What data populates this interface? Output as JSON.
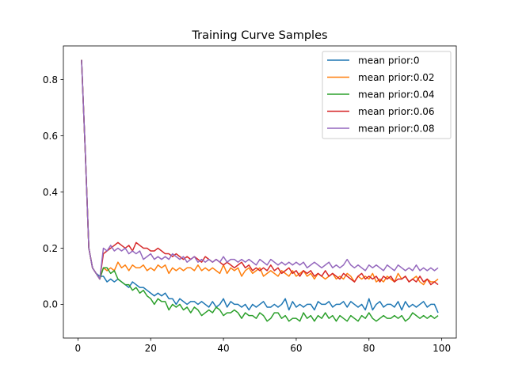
{
  "chart_data": {
    "type": "line",
    "title": "Training Curve Samples",
    "xlabel": "",
    "ylabel": "",
    "xlim": [
      -4,
      104
    ],
    "ylim": [
      -0.12,
      0.92
    ],
    "xticks": [
      0,
      20,
      40,
      60,
      80,
      100
    ],
    "yticks": [
      0.0,
      0.2,
      0.4,
      0.6,
      0.8
    ],
    "grid": false,
    "legend_position": "top-right",
    "x": [
      1,
      2,
      3,
      4,
      5,
      6,
      7,
      8,
      9,
      10,
      11,
      12,
      13,
      14,
      15,
      16,
      17,
      18,
      19,
      20,
      21,
      22,
      23,
      24,
      25,
      26,
      27,
      28,
      29,
      30,
      31,
      32,
      33,
      34,
      35,
      36,
      37,
      38,
      39,
      40,
      41,
      42,
      43,
      44,
      45,
      46,
      47,
      48,
      49,
      50,
      51,
      52,
      53,
      54,
      55,
      56,
      57,
      58,
      59,
      60,
      61,
      62,
      63,
      64,
      65,
      66,
      67,
      68,
      69,
      70,
      71,
      72,
      73,
      74,
      75,
      76,
      77,
      78,
      79,
      80,
      81,
      82,
      83,
      84,
      85,
      86,
      87,
      88,
      89,
      90,
      91,
      92,
      93,
      94,
      95,
      96,
      97,
      98,
      99
    ],
    "series": [
      {
        "name": "mean prior:0",
        "color": "#1f77b4",
        "values": [
          0.87,
          0.55,
          0.2,
          0.13,
          0.11,
          0.1,
          0.1,
          0.08,
          0.09,
          0.08,
          0.09,
          0.08,
          0.07,
          0.06,
          0.08,
          0.07,
          0.06,
          0.06,
          0.05,
          0.04,
          0.03,
          0.04,
          0.03,
          0.04,
          0.02,
          0.02,
          0.0,
          0.02,
          0.01,
          0.0,
          0.01,
          0.01,
          0.0,
          0.01,
          0.0,
          -0.01,
          0.01,
          -0.01,
          0.0,
          0.02,
          -0.01,
          0.01,
          0.0,
          0.0,
          -0.01,
          0.0,
          -0.02,
          0.0,
          -0.01,
          0.0,
          0.01,
          -0.01,
          -0.01,
          0.0,
          -0.01,
          0.0,
          0.02,
          -0.02,
          0.01,
          -0.01,
          0.0,
          -0.01,
          0.0,
          0.0,
          -0.02,
          0.01,
          0.0,
          0.0,
          0.01,
          -0.01,
          0.0,
          0.0,
          0.01,
          -0.01,
          0.01,
          0.0,
          -0.01,
          0.0,
          -0.02,
          0.02,
          -0.02,
          0.0,
          0.01,
          -0.01,
          0.0,
          0.0,
          -0.01,
          0.01,
          -0.02,
          0.01,
          -0.01,
          0.0,
          -0.01,
          0.0,
          0.01,
          -0.01,
          0.0,
          0.0,
          -0.03
        ]
      },
      {
        "name": "mean prior:0.02",
        "color": "#ff7f0e",
        "values": [
          0.87,
          0.55,
          0.2,
          0.13,
          0.11,
          0.09,
          0.13,
          0.12,
          0.13,
          0.12,
          0.15,
          0.13,
          0.14,
          0.12,
          0.14,
          0.13,
          0.13,
          0.14,
          0.12,
          0.13,
          0.12,
          0.14,
          0.13,
          0.14,
          0.11,
          0.13,
          0.12,
          0.13,
          0.12,
          0.13,
          0.13,
          0.12,
          0.14,
          0.12,
          0.13,
          0.12,
          0.13,
          0.12,
          0.11,
          0.14,
          0.11,
          0.13,
          0.12,
          0.13,
          0.1,
          0.12,
          0.13,
          0.11,
          0.12,
          0.13,
          0.1,
          0.11,
          0.12,
          0.11,
          0.1,
          0.12,
          0.11,
          0.1,
          0.12,
          0.1,
          0.11,
          0.12,
          0.1,
          0.11,
          0.09,
          0.11,
          0.1,
          0.09,
          0.1,
          0.11,
          0.09,
          0.1,
          0.09,
          0.11,
          0.1,
          0.08,
          0.1,
          0.09,
          0.1,
          0.09,
          0.11,
          0.08,
          0.09,
          0.08,
          0.1,
          0.09,
          0.08,
          0.11,
          0.09,
          0.1,
          0.08,
          0.09,
          0.1,
          0.08,
          0.07,
          0.09,
          0.08,
          0.08,
          0.09
        ]
      },
      {
        "name": "mean prior:0.04",
        "color": "#2ca02c",
        "values": [
          0.87,
          0.55,
          0.2,
          0.13,
          0.11,
          0.09,
          0.13,
          0.13,
          0.11,
          0.12,
          0.09,
          0.08,
          0.07,
          0.07,
          0.05,
          0.06,
          0.04,
          0.05,
          0.03,
          0.02,
          0.0,
          0.02,
          0.01,
          0.01,
          -0.02,
          0.0,
          -0.01,
          0.0,
          -0.02,
          -0.01,
          -0.03,
          -0.01,
          -0.02,
          -0.04,
          -0.03,
          -0.02,
          -0.03,
          -0.01,
          -0.02,
          -0.04,
          -0.03,
          -0.03,
          -0.02,
          -0.03,
          -0.05,
          -0.03,
          -0.04,
          -0.04,
          -0.05,
          -0.03,
          -0.04,
          -0.06,
          -0.05,
          -0.03,
          -0.03,
          -0.05,
          -0.04,
          -0.06,
          -0.05,
          -0.05,
          -0.06,
          -0.03,
          -0.05,
          -0.04,
          -0.06,
          -0.04,
          -0.05,
          -0.03,
          -0.05,
          -0.04,
          -0.06,
          -0.04,
          -0.05,
          -0.06,
          -0.04,
          -0.05,
          -0.06,
          -0.04,
          -0.05,
          -0.03,
          -0.05,
          -0.06,
          -0.05,
          -0.04,
          -0.05,
          -0.05,
          -0.04,
          -0.05,
          -0.04,
          -0.06,
          -0.05,
          -0.03,
          -0.04,
          -0.05,
          -0.04,
          -0.05,
          -0.04,
          -0.05,
          -0.04
        ]
      },
      {
        "name": "mean prior:0.06",
        "color": "#d62728",
        "values": [
          0.87,
          0.55,
          0.2,
          0.13,
          0.11,
          0.09,
          0.18,
          0.19,
          0.2,
          0.21,
          0.22,
          0.21,
          0.2,
          0.21,
          0.19,
          0.22,
          0.21,
          0.2,
          0.2,
          0.19,
          0.19,
          0.2,
          0.19,
          0.18,
          0.18,
          0.17,
          0.18,
          0.17,
          0.16,
          0.17,
          0.16,
          0.17,
          0.16,
          0.15,
          0.17,
          0.16,
          0.15,
          0.16,
          0.15,
          0.14,
          0.15,
          0.14,
          0.13,
          0.14,
          0.15,
          0.13,
          0.14,
          0.12,
          0.13,
          0.12,
          0.13,
          0.12,
          0.14,
          0.12,
          0.13,
          0.11,
          0.12,
          0.13,
          0.11,
          0.12,
          0.1,
          0.12,
          0.11,
          0.12,
          0.1,
          0.11,
          0.1,
          0.12,
          0.1,
          0.11,
          0.1,
          0.09,
          0.11,
          0.1,
          0.09,
          0.08,
          0.1,
          0.11,
          0.09,
          0.1,
          0.09,
          0.1,
          0.08,
          0.1,
          0.09,
          0.1,
          0.08,
          0.09,
          0.09,
          0.1,
          0.08,
          0.09,
          0.08,
          0.1,
          0.08,
          0.09,
          0.07,
          0.08,
          0.07
        ]
      },
      {
        "name": "mean prior:0.08",
        "color": "#9467bd",
        "values": [
          0.87,
          0.55,
          0.2,
          0.13,
          0.11,
          0.09,
          0.2,
          0.19,
          0.21,
          0.19,
          0.2,
          0.19,
          0.2,
          0.18,
          0.19,
          0.18,
          0.19,
          0.16,
          0.17,
          0.18,
          0.16,
          0.17,
          0.16,
          0.17,
          0.16,
          0.18,
          0.17,
          0.16,
          0.17,
          0.15,
          0.16,
          0.17,
          0.15,
          0.16,
          0.15,
          0.16,
          0.15,
          0.16,
          0.15,
          0.17,
          0.15,
          0.16,
          0.16,
          0.15,
          0.16,
          0.15,
          0.16,
          0.15,
          0.14,
          0.16,
          0.15,
          0.14,
          0.16,
          0.15,
          0.14,
          0.15,
          0.14,
          0.15,
          0.14,
          0.15,
          0.14,
          0.15,
          0.13,
          0.14,
          0.15,
          0.14,
          0.13,
          0.14,
          0.15,
          0.13,
          0.14,
          0.13,
          0.14,
          0.16,
          0.14,
          0.13,
          0.14,
          0.13,
          0.12,
          0.14,
          0.13,
          0.14,
          0.13,
          0.12,
          0.14,
          0.13,
          0.12,
          0.14,
          0.13,
          0.12,
          0.13,
          0.12,
          0.14,
          0.12,
          0.13,
          0.12,
          0.13,
          0.12,
          0.13
        ]
      }
    ]
  }
}
